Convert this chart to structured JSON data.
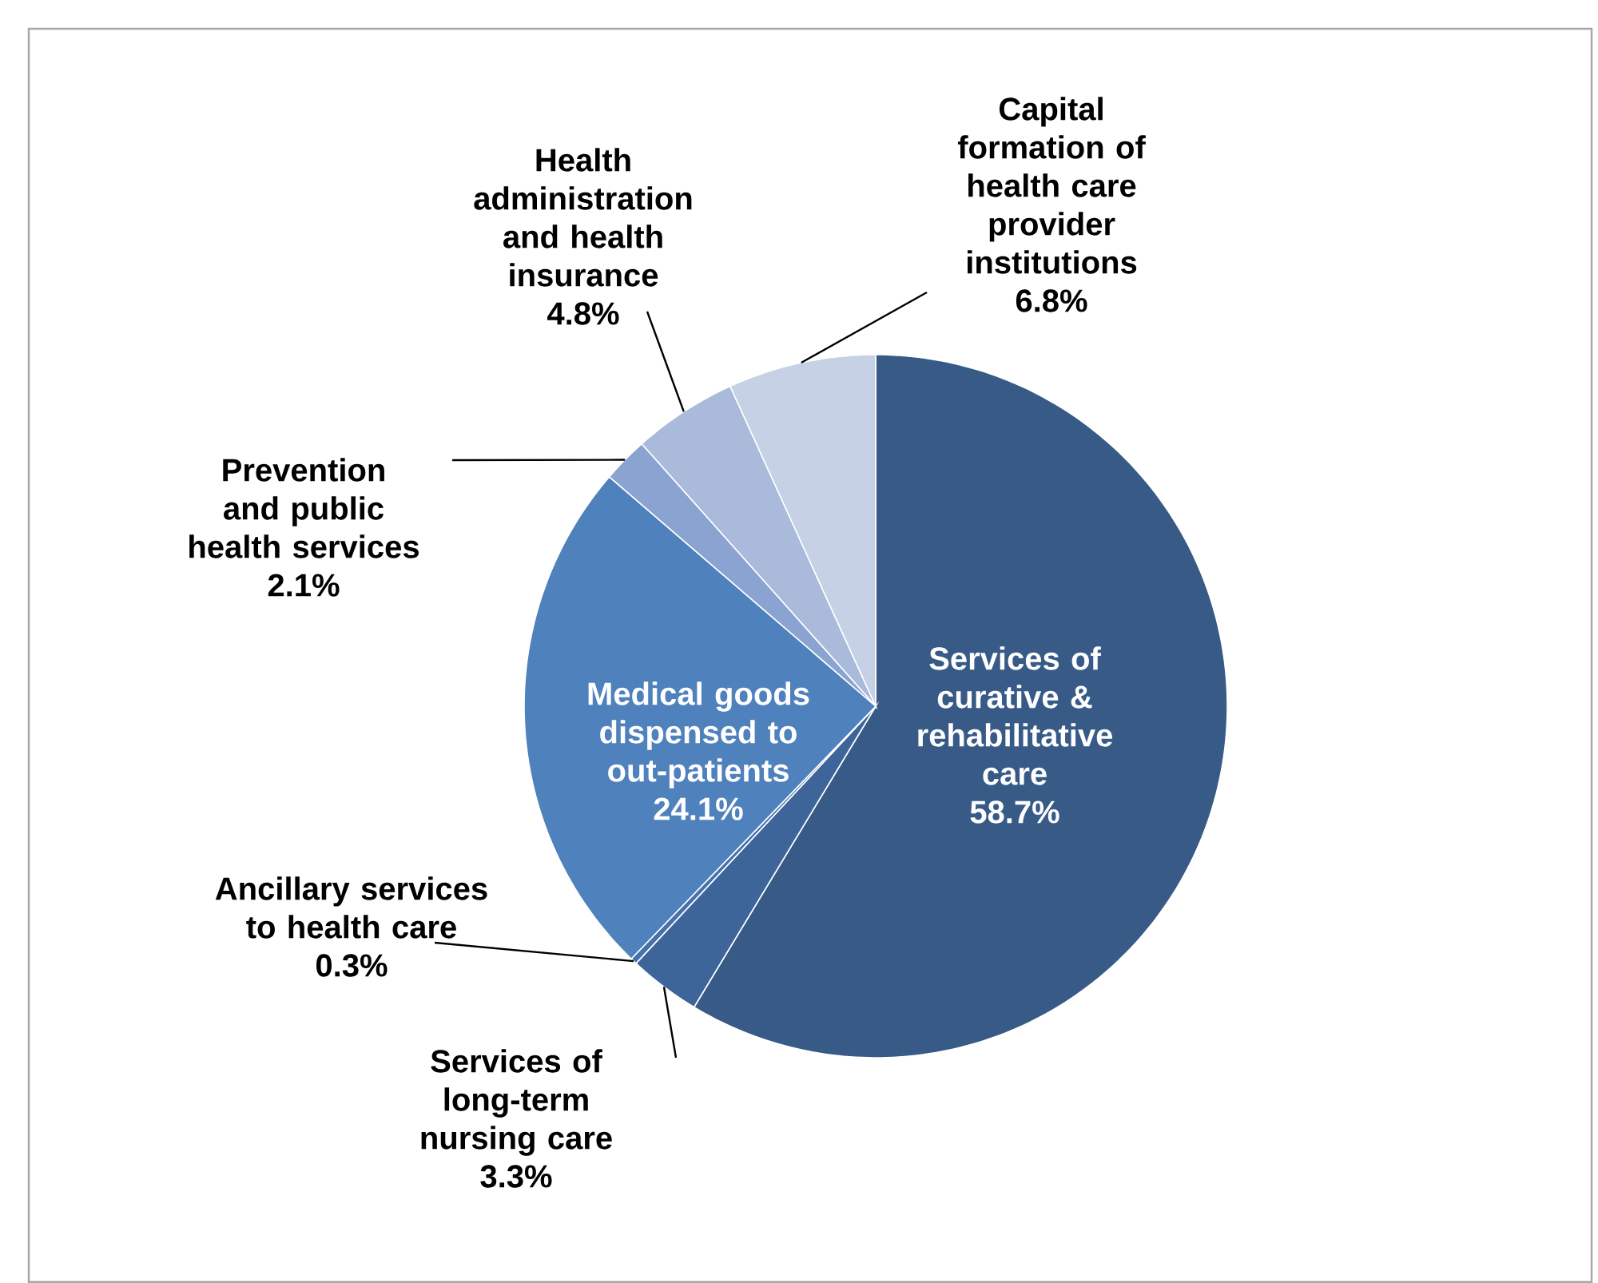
{
  "chart_data": {
    "type": "pie",
    "categories": [
      "Services of curative & rehabilitative care",
      "Services of long-term nursing care",
      "Ancillary services to health care",
      "Medical goods dispensed to out-patients",
      "Prevention and public health services",
      "Health administration and health insurance",
      "Capital formation of health care provider institutions"
    ],
    "values": [
      58.7,
      3.3,
      0.3,
      24.1,
      2.1,
      4.8,
      6.8
    ],
    "value_labels": [
      "58.7%",
      "3.3%",
      "0.3%",
      "24.1%",
      "2.1%",
      "4.8%",
      "6.8%"
    ],
    "colors": [
      "#375a87",
      "#3e659a",
      "#4672ab",
      "#4f81bd",
      "#8aa3d1",
      "#a9badb",
      "#c6d1e6"
    ]
  }
}
